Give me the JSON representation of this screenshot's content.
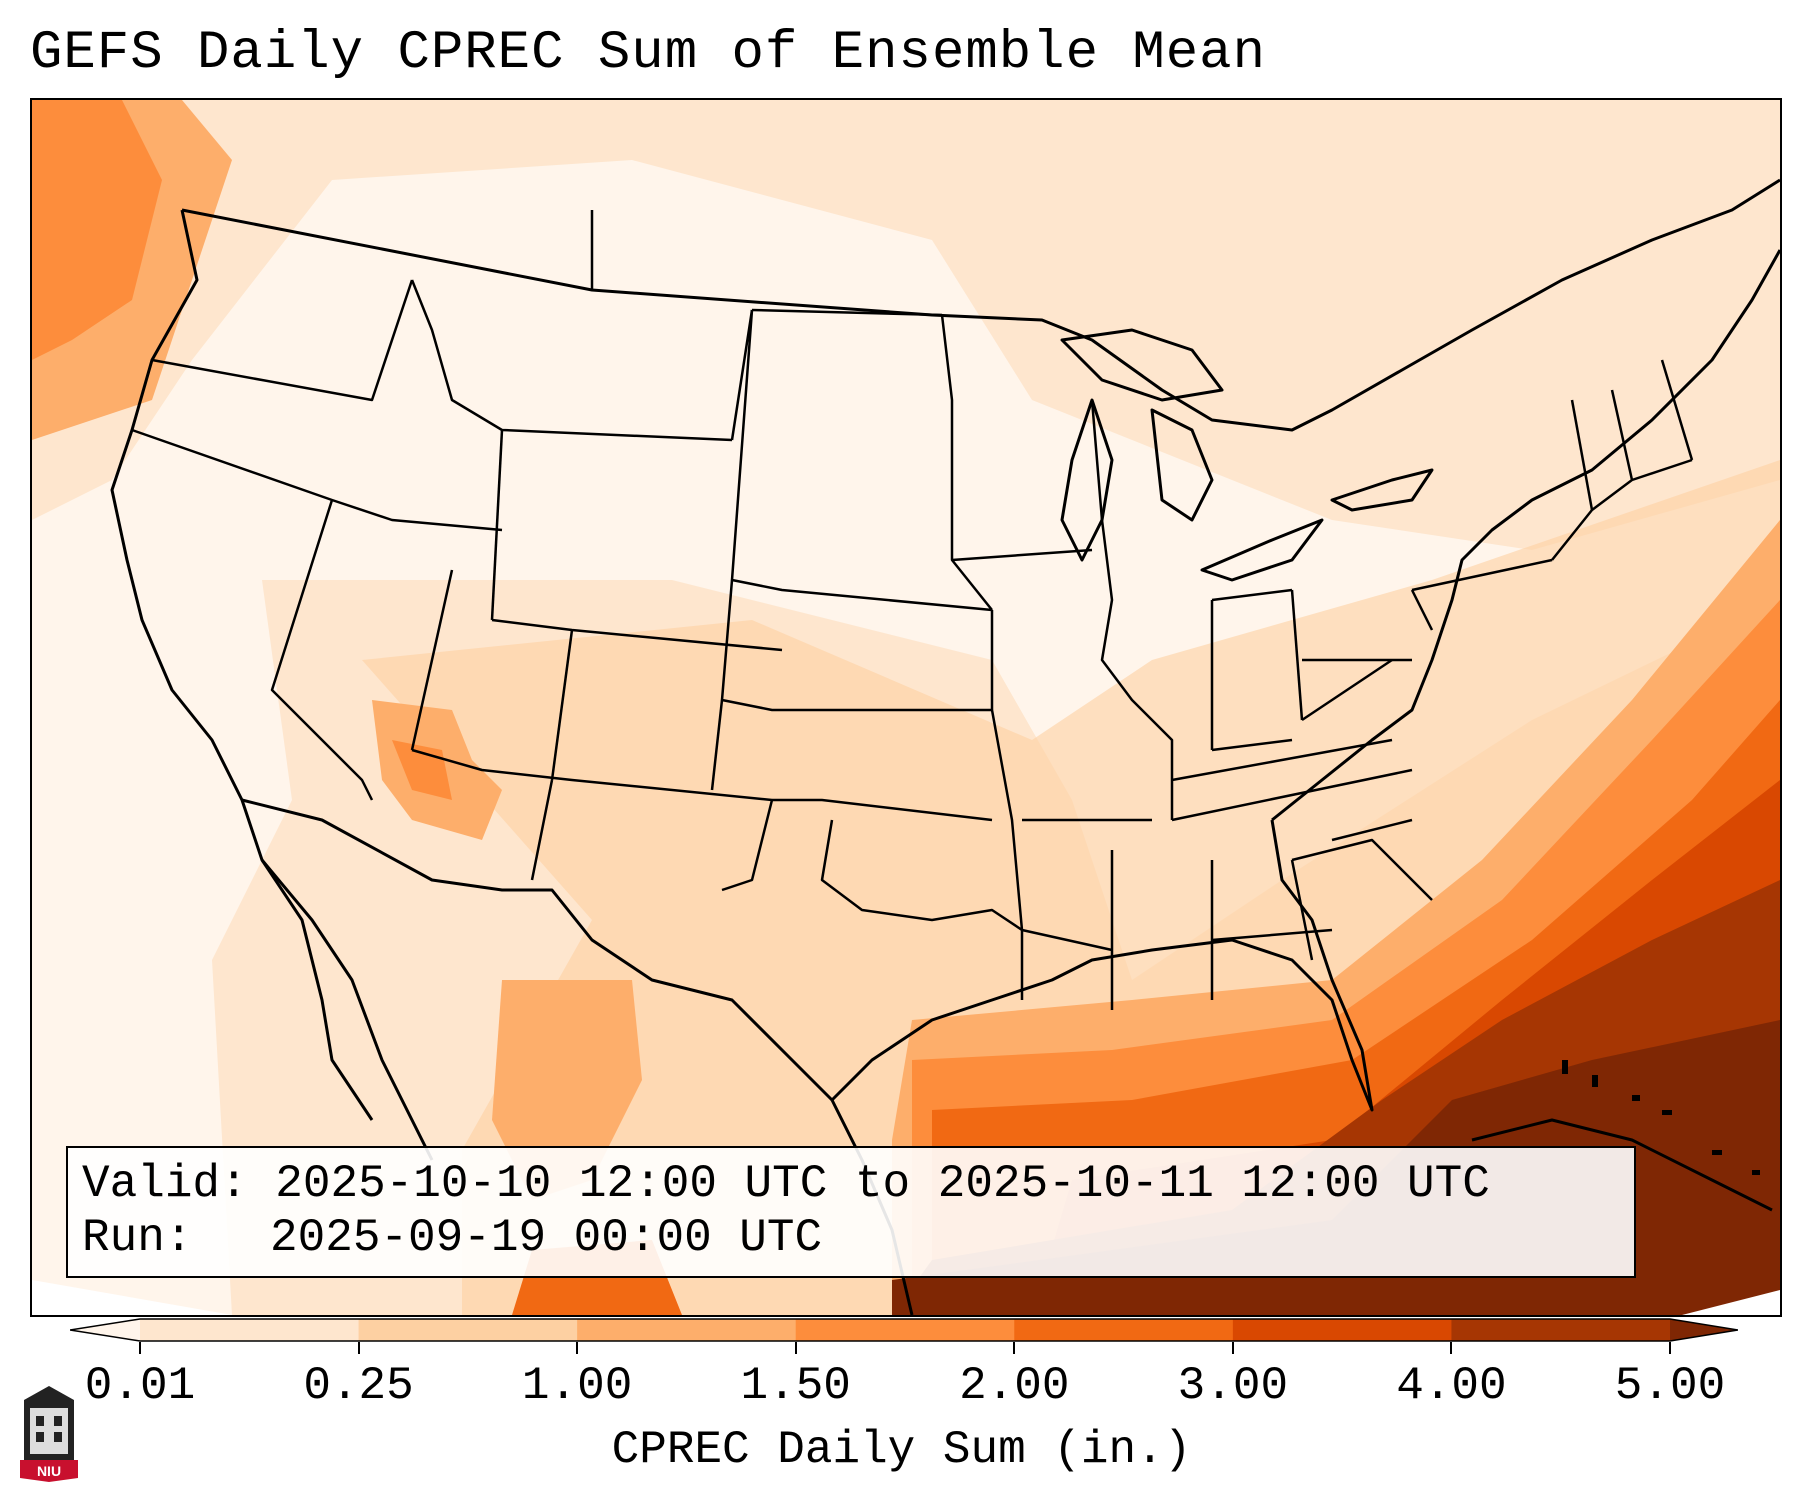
{
  "title": "GEFS Daily CPREC Sum of Ensemble Mean",
  "info": {
    "valid_label": "Valid:",
    "valid_value": "2025-10-10 12:00 UTC to 2025-10-11 12:00 UTC",
    "run_label": "Run:",
    "run_value": "2025-09-19 00:00 UTC"
  },
  "colorbar": {
    "label": "CPREC Daily Sum (in.)",
    "ticks": [
      "0.01",
      "0.25",
      "1.00",
      "1.50",
      "2.00",
      "3.00",
      "4.00",
      "5.00"
    ],
    "colors": [
      "#fff5eb",
      "#fee6ce",
      "#fdd0a2",
      "#fdae6b",
      "#fd8d3c",
      "#f16913",
      "#d94801",
      "#a63603",
      "#7f2704"
    ]
  },
  "logo": {
    "text": "NIU",
    "icon": "niu-tower-logo-icon"
  }
}
